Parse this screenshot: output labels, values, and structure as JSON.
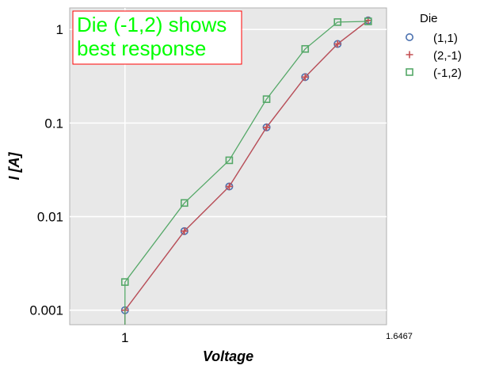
{
  "chart_data": {
    "type": "line",
    "xlabel": "Voltage",
    "ylabel": "I [A]",
    "xscale": "log",
    "yscale": "log",
    "xlim": [
      0.9,
      1.6467
    ],
    "ylim": [
      0.0007,
      1.7
    ],
    "x_ticks": [
      {
        "value": 1,
        "label": "1",
        "size": "large"
      },
      {
        "value": 1.6467,
        "label": "1.6467",
        "size": "small"
      }
    ],
    "y_ticks": [
      {
        "value": 0.001,
        "label": "0.001"
      },
      {
        "value": 0.01,
        "label": "0.01"
      },
      {
        "value": 0.1,
        "label": "0.1"
      },
      {
        "value": 1,
        "label": "1"
      }
    ],
    "grid": true,
    "legend": {
      "title": "Die",
      "placement": "outside-right"
    },
    "annotation": {
      "lines": [
        "Die (-1,2) shows",
        "best response"
      ],
      "color": "#00ff00",
      "border": "#ff0000"
    },
    "series": [
      {
        "name": "(1,1)",
        "marker": "circle",
        "color": "#4c72b0",
        "x": [
          1.0,
          1.12,
          1.22,
          1.31,
          1.41,
          1.5,
          1.59
        ],
        "y": [
          0.001,
          0.007,
          0.021,
          0.09,
          0.31,
          0.7,
          1.25
        ]
      },
      {
        "name": "(2,-1)",
        "marker": "plus",
        "color": "#c44e52",
        "x": [
          1.0,
          1.12,
          1.22,
          1.31,
          1.41,
          1.5,
          1.59
        ],
        "y": [
          0.001,
          0.007,
          0.021,
          0.09,
          0.31,
          0.7,
          1.25
        ]
      },
      {
        "name": "(-1,2)",
        "marker": "square",
        "color": "#55a868",
        "x": [
          1.0,
          1.12,
          1.22,
          1.31,
          1.41,
          1.5,
          1.59
        ],
        "y": [
          0.002,
          0.014,
          0.04,
          0.18,
          0.62,
          1.2,
          1.22
        ]
      }
    ]
  }
}
